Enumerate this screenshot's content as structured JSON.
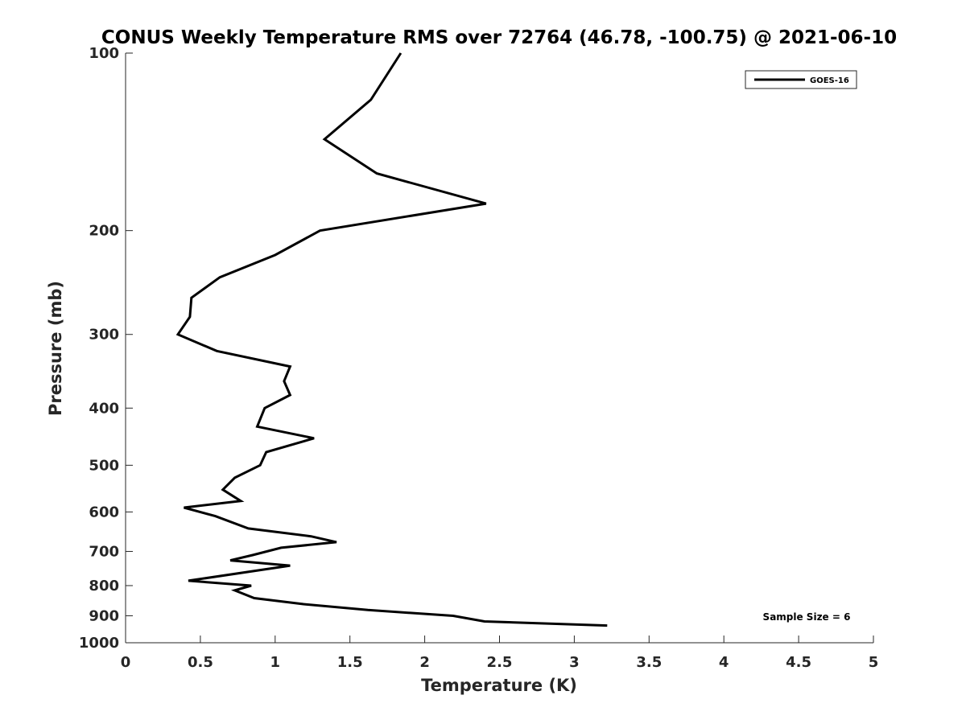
{
  "chart_data": {
    "type": "line",
    "title": "CONUS Weekly Temperature RMS over 72764 (46.78, -100.75) @ 2021-06-10",
    "xlabel": "Temperature (K)",
    "ylabel": "Pressure (mb)",
    "xlim": [
      0,
      5
    ],
    "ylim": [
      100,
      1000
    ],
    "y_scale": "log",
    "y_reversed": true,
    "x_ticks": [
      "0",
      "0.5",
      "1",
      "1.5",
      "2",
      "2.5",
      "3",
      "3.5",
      "4",
      "4.5",
      "5"
    ],
    "y_ticks": [
      "100",
      "200",
      "300",
      "400",
      "500",
      "600",
      "700",
      "800",
      "900",
      "1000"
    ],
    "grid": false,
    "legend": {
      "placement": "top-right",
      "entries": [
        "GOES-16"
      ]
    },
    "annotation": "Sample Size = 6",
    "series": [
      {
        "name": "GOES-16",
        "color": "#000000",
        "points": [
          [
            1.84,
            100
          ],
          [
            1.64,
            120
          ],
          [
            1.33,
            140
          ],
          [
            1.68,
            160
          ],
          [
            2.41,
            180
          ],
          [
            1.3,
            200
          ],
          [
            1.0,
            220
          ],
          [
            0.63,
            240
          ],
          [
            0.44,
            260
          ],
          [
            0.43,
            280
          ],
          [
            0.35,
            300
          ],
          [
            0.61,
            320
          ],
          [
            1.1,
            340
          ],
          [
            1.06,
            360
          ],
          [
            1.1,
            380
          ],
          [
            0.93,
            400
          ],
          [
            0.88,
            430
          ],
          [
            1.26,
            450
          ],
          [
            0.94,
            475
          ],
          [
            0.9,
            500
          ],
          [
            0.73,
            525
          ],
          [
            0.65,
            550
          ],
          [
            0.77,
            575
          ],
          [
            0.39,
            590
          ],
          [
            0.6,
            610
          ],
          [
            0.82,
            640
          ],
          [
            1.24,
            660
          ],
          [
            1.41,
            675
          ],
          [
            1.04,
            690
          ],
          [
            0.85,
            710
          ],
          [
            0.7,
            725
          ],
          [
            1.1,
            740
          ],
          [
            0.42,
            785
          ],
          [
            0.84,
            800
          ],
          [
            0.73,
            815
          ],
          [
            0.86,
            840
          ],
          [
            1.19,
            860
          ],
          [
            1.62,
            880
          ],
          [
            2.19,
            900
          ],
          [
            2.4,
            920
          ],
          [
            3.22,
            935
          ]
        ]
      }
    ]
  }
}
